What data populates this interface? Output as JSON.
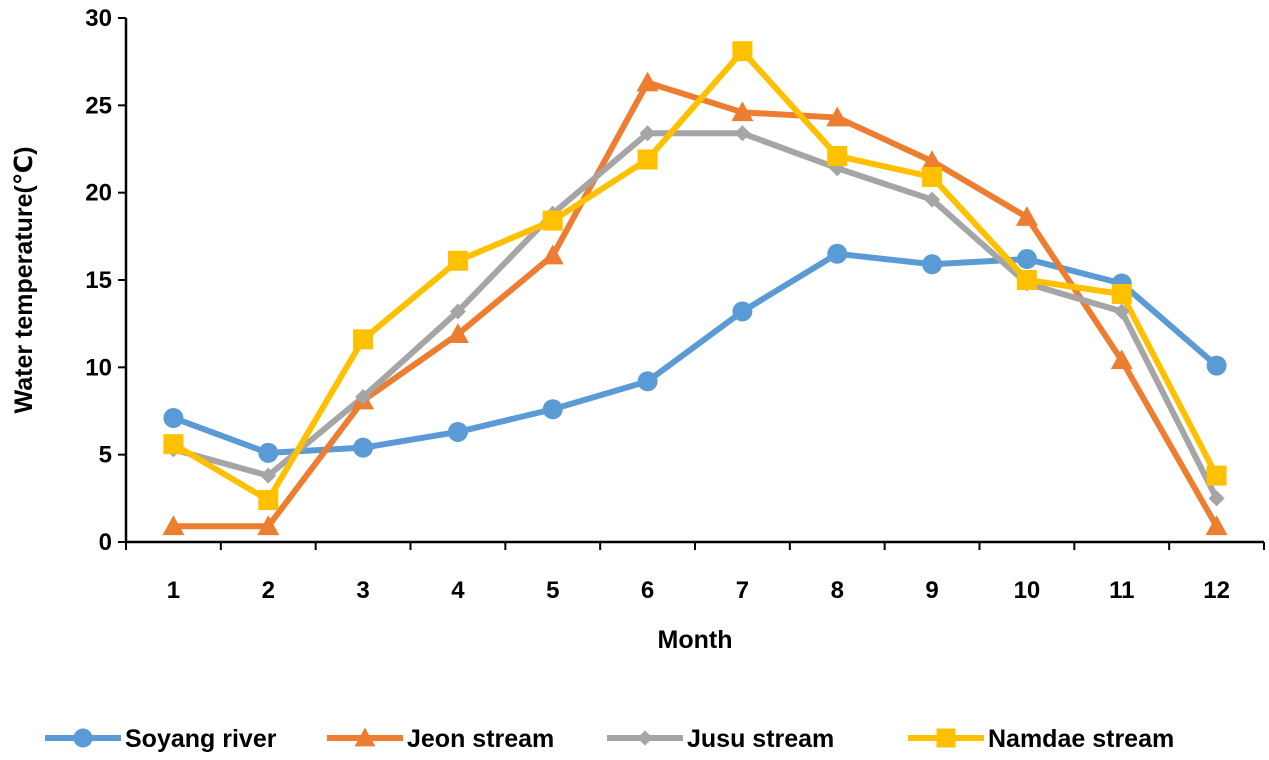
{
  "chart_data": {
    "type": "line",
    "title": "",
    "xlabel": "Month",
    "ylabel": "Water temperature(℃)",
    "categories": [
      "1",
      "2",
      "3",
      "4",
      "5",
      "6",
      "7",
      "8",
      "9",
      "10",
      "11",
      "12"
    ],
    "ylim": [
      0,
      30
    ],
    "yticks": [
      "0",
      "5",
      "10",
      "15",
      "20",
      "25",
      "30"
    ],
    "grid": false,
    "legend_position": "bottom",
    "series": [
      {
        "name": "Soyang river",
        "color": "#5b9bd5",
        "marker": "circle",
        "values": [
          7.1,
          5.1,
          5.4,
          6.3,
          7.6,
          9.2,
          13.2,
          16.5,
          15.9,
          16.2,
          14.8,
          10.1
        ]
      },
      {
        "name": "Jeon stream",
        "color": "#ed7d31",
        "marker": "triangle",
        "values": [
          0.9,
          0.9,
          8.1,
          11.9,
          16.4,
          26.3,
          24.6,
          24.3,
          21.8,
          18.6,
          10.4,
          0.9
        ]
      },
      {
        "name": "Jusu stream",
        "color": "#a5a5a5",
        "marker": "diamond",
        "values": [
          5.3,
          3.8,
          8.3,
          13.2,
          18.8,
          23.4,
          23.4,
          21.4,
          19.6,
          14.8,
          13.2,
          2.5
        ]
      },
      {
        "name": "Namdae stream",
        "color": "#ffc000",
        "marker": "square",
        "values": [
          5.6,
          2.4,
          11.6,
          16.1,
          18.4,
          21.9,
          28.1,
          22.1,
          20.9,
          15.0,
          14.2,
          3.8
        ]
      }
    ]
  }
}
